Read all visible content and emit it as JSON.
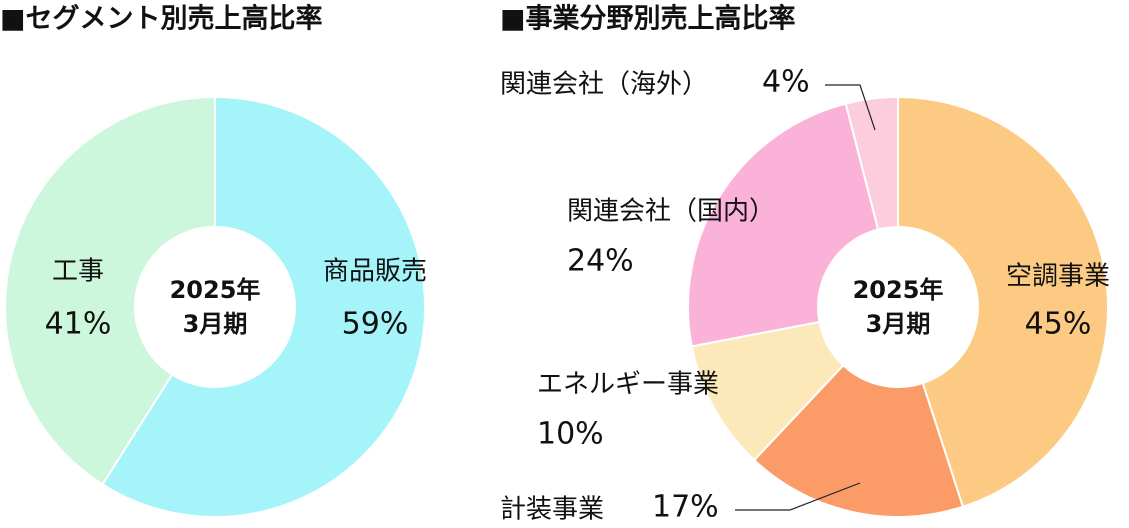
{
  "chart_data": [
    {
      "type": "donut",
      "title": "■セグメント別売上高比率",
      "center_label": [
        "2025年",
        "3月期"
      ],
      "categories": [
        "商品販売",
        "工事"
      ],
      "values": [
        59,
        41
      ],
      "value_labels": [
        "59%",
        "41%"
      ],
      "colors": [
        "#a4f4fa",
        "#cdf7dc"
      ]
    },
    {
      "type": "donut",
      "title": "■事業分野別売上高比率",
      "center_label": [
        "2025年",
        "3月期"
      ],
      "categories": [
        "空調事業",
        "計装事業",
        "エネルギー事業",
        "関連会社（国内）",
        "関連会社（海外）"
      ],
      "values": [
        45,
        17,
        10,
        24,
        4
      ],
      "value_labels": [
        "45%",
        "17%",
        "10%",
        "24%",
        "4%"
      ],
      "colors": [
        "#fdca84",
        "#fb9c68",
        "#fde8ba",
        "#fbb2d9",
        "#fccddc"
      ]
    }
  ]
}
